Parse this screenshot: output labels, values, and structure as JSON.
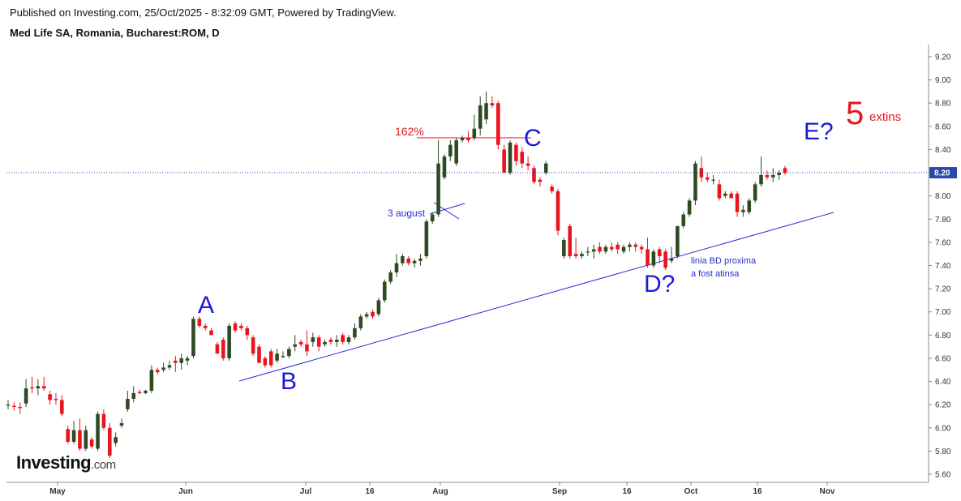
{
  "header": {
    "published": "Published on Investing.com, 25/Oct/2025 - 8:32:09 GMT, Powered by TradingView.",
    "symbol": "Med Life SA, Romania, Bucharest:ROM, D"
  },
  "logo": {
    "brand": "Investing",
    "domain": ".com"
  },
  "colors": {
    "up": "#2e4a22",
    "down": "#e8141e",
    "wave": "#1a1ad6",
    "priceline": "#2a4aa8",
    "label_bg": "#2a4aa8"
  },
  "chart_data": {
    "type": "candlestick",
    "title": "Med Life SA, Romania, Bucharest:ROM, D",
    "ylim": [
      5.55,
      9.3
    ],
    "y_ticks": [
      "9.20",
      "9.00",
      "8.80",
      "8.60",
      "8.40",
      "8.20",
      "8.00",
      "7.80",
      "7.60",
      "7.40",
      "7.20",
      "7.00",
      "6.80",
      "6.60",
      "6.40",
      "6.20",
      "6.00",
      "5.80",
      "5.60"
    ],
    "x_ticks": [
      "May",
      "Jun",
      "Jul",
      "16",
      "Aug",
      "Sep",
      "16",
      "Oct",
      "16",
      "Nov"
    ],
    "last_price_label": "8.20",
    "last_price": 8.2,
    "candles": [
      {
        "o": 6.2,
        "h": 6.24,
        "l": 6.16,
        "c": 6.2
      },
      {
        "o": 6.19,
        "h": 6.22,
        "l": 6.15,
        "c": 6.18
      },
      {
        "o": 6.18,
        "h": 6.22,
        "l": 6.12,
        "c": 6.17
      },
      {
        "o": 6.21,
        "h": 6.42,
        "l": 6.18,
        "c": 6.34
      },
      {
        "o": 6.35,
        "h": 6.44,
        "l": 6.3,
        "c": 6.34
      },
      {
        "o": 6.34,
        "h": 6.42,
        "l": 6.28,
        "c": 6.36
      },
      {
        "o": 6.36,
        "h": 6.44,
        "l": 6.32,
        "c": 6.34
      },
      {
        "o": 6.29,
        "h": 6.32,
        "l": 6.2,
        "c": 6.24
      },
      {
        "o": 6.25,
        "h": 6.3,
        "l": 6.2,
        "c": 6.24
      },
      {
        "o": 6.24,
        "h": 6.28,
        "l": 6.1,
        "c": 6.12
      },
      {
        "o": 5.99,
        "h": 6.02,
        "l": 5.86,
        "c": 5.88
      },
      {
        "o": 5.88,
        "h": 6.06,
        "l": 5.86,
        "c": 5.98
      },
      {
        "o": 5.98,
        "h": 6.08,
        "l": 5.8,
        "c": 5.82
      },
      {
        "o": 5.82,
        "h": 6.02,
        "l": 5.8,
        "c": 5.98
      },
      {
        "o": 5.9,
        "h": 5.92,
        "l": 5.82,
        "c": 5.84
      },
      {
        "o": 5.82,
        "h": 6.14,
        "l": 5.8,
        "c": 6.12
      },
      {
        "o": 6.12,
        "h": 6.16,
        "l": 5.98,
        "c": 6.0
      },
      {
        "o": 6.0,
        "h": 6.04,
        "l": 5.74,
        "c": 5.76
      },
      {
        "o": 5.87,
        "h": 5.96,
        "l": 5.84,
        "c": 5.92
      },
      {
        "o": 6.02,
        "h": 6.08,
        "l": 6.0,
        "c": 6.04
      },
      {
        "o": 6.16,
        "h": 6.32,
        "l": 6.14,
        "c": 6.25
      },
      {
        "o": 6.25,
        "h": 6.36,
        "l": 6.22,
        "c": 6.3
      },
      {
        "o": 6.31,
        "h": 6.33,
        "l": 6.29,
        "c": 6.3
      },
      {
        "o": 6.3,
        "h": 6.33,
        "l": 6.29,
        "c": 6.32
      },
      {
        "o": 6.32,
        "h": 6.54,
        "l": 6.3,
        "c": 6.5
      },
      {
        "o": 6.5,
        "h": 6.52,
        "l": 6.46,
        "c": 6.48
      },
      {
        "o": 6.5,
        "h": 6.56,
        "l": 6.48,
        "c": 6.52
      },
      {
        "o": 6.52,
        "h": 6.58,
        "l": 6.5,
        "c": 6.54
      },
      {
        "o": 6.58,
        "h": 6.62,
        "l": 6.48,
        "c": 6.56
      },
      {
        "o": 6.56,
        "h": 6.64,
        "l": 6.5,
        "c": 6.6
      },
      {
        "o": 6.58,
        "h": 6.62,
        "l": 6.54,
        "c": 6.6
      },
      {
        "o": 6.62,
        "h": 6.96,
        "l": 6.6,
        "c": 6.94
      },
      {
        "o": 6.94,
        "h": 6.96,
        "l": 6.86,
        "c": 6.88
      },
      {
        "o": 6.88,
        "h": 6.9,
        "l": 6.84,
        "c": 6.86
      },
      {
        "o": 6.84,
        "h": 6.86,
        "l": 6.8,
        "c": 6.8
      },
      {
        "o": 6.72,
        "h": 6.74,
        "l": 6.64,
        "c": 6.64
      },
      {
        "o": 6.76,
        "h": 6.78,
        "l": 6.58,
        "c": 6.6
      },
      {
        "o": 6.6,
        "h": 6.9,
        "l": 6.58,
        "c": 6.88
      },
      {
        "o": 6.9,
        "h": 6.92,
        "l": 6.82,
        "c": 6.84
      },
      {
        "o": 6.88,
        "h": 6.9,
        "l": 6.84,
        "c": 6.86
      },
      {
        "o": 6.86,
        "h": 6.88,
        "l": 6.76,
        "c": 6.8
      },
      {
        "o": 6.78,
        "h": 6.8,
        "l": 6.62,
        "c": 6.64
      },
      {
        "o": 6.7,
        "h": 6.72,
        "l": 6.56,
        "c": 6.56
      },
      {
        "o": 6.6,
        "h": 6.62,
        "l": 6.52,
        "c": 6.54
      },
      {
        "o": 6.66,
        "h": 6.68,
        "l": 6.52,
        "c": 6.54
      },
      {
        "o": 6.58,
        "h": 6.68,
        "l": 6.56,
        "c": 6.64
      },
      {
        "o": 6.62,
        "h": 6.66,
        "l": 6.6,
        "c": 6.62
      },
      {
        "o": 6.62,
        "h": 6.7,
        "l": 6.6,
        "c": 6.68
      },
      {
        "o": 6.7,
        "h": 6.8,
        "l": 6.66,
        "c": 6.72
      },
      {
        "o": 6.74,
        "h": 6.76,
        "l": 6.7,
        "c": 6.72
      },
      {
        "o": 6.72,
        "h": 6.84,
        "l": 6.62,
        "c": 6.66
      },
      {
        "o": 6.74,
        "h": 6.82,
        "l": 6.7,
        "c": 6.78
      },
      {
        "o": 6.78,
        "h": 6.8,
        "l": 6.66,
        "c": 6.7
      },
      {
        "o": 6.72,
        "h": 6.76,
        "l": 6.7,
        "c": 6.74
      },
      {
        "o": 6.76,
        "h": 6.78,
        "l": 6.72,
        "c": 6.74
      },
      {
        "o": 6.74,
        "h": 6.8,
        "l": 6.7,
        "c": 6.76
      },
      {
        "o": 6.8,
        "h": 6.82,
        "l": 6.72,
        "c": 6.74
      },
      {
        "o": 6.74,
        "h": 6.8,
        "l": 6.72,
        "c": 6.78
      },
      {
        "o": 6.78,
        "h": 6.9,
        "l": 6.76,
        "c": 6.86
      },
      {
        "o": 6.86,
        "h": 6.98,
        "l": 6.84,
        "c": 6.96
      },
      {
        "o": 6.96,
        "h": 7.0,
        "l": 6.94,
        "c": 6.98
      },
      {
        "o": 7.0,
        "h": 7.02,
        "l": 6.94,
        "c": 6.96
      },
      {
        "o": 6.98,
        "h": 7.12,
        "l": 6.96,
        "c": 7.1
      },
      {
        "o": 7.1,
        "h": 7.28,
        "l": 7.08,
        "c": 7.26
      },
      {
        "o": 7.26,
        "h": 7.36,
        "l": 7.24,
        "c": 7.34
      },
      {
        "o": 7.34,
        "h": 7.5,
        "l": 7.3,
        "c": 7.42
      },
      {
        "o": 7.42,
        "h": 7.5,
        "l": 7.4,
        "c": 7.48
      },
      {
        "o": 7.46,
        "h": 7.48,
        "l": 7.4,
        "c": 7.42
      },
      {
        "o": 7.42,
        "h": 7.46,
        "l": 7.38,
        "c": 7.44
      },
      {
        "o": 7.44,
        "h": 7.5,
        "l": 7.4,
        "c": 7.46
      },
      {
        "o": 7.48,
        "h": 7.8,
        "l": 7.46,
        "c": 7.78
      },
      {
        "o": 7.78,
        "h": 7.86,
        "l": 7.76,
        "c": 7.84
      },
      {
        "o": 7.84,
        "h": 8.48,
        "l": 7.82,
        "c": 8.28
      },
      {
        "o": 8.16,
        "h": 8.36,
        "l": 8.14,
        "c": 8.34
      },
      {
        "o": 8.34,
        "h": 8.48,
        "l": 8.3,
        "c": 8.44
      },
      {
        "o": 8.28,
        "h": 8.5,
        "l": 8.26,
        "c": 8.48
      },
      {
        "o": 8.48,
        "h": 8.52,
        "l": 8.46,
        "c": 8.5
      },
      {
        "o": 8.5,
        "h": 8.56,
        "l": 8.46,
        "c": 8.48
      },
      {
        "o": 8.5,
        "h": 8.7,
        "l": 8.48,
        "c": 8.58
      },
      {
        "o": 8.58,
        "h": 8.86,
        "l": 8.52,
        "c": 8.78
      },
      {
        "o": 8.66,
        "h": 8.9,
        "l": 8.62,
        "c": 8.8
      },
      {
        "o": 8.8,
        "h": 8.86,
        "l": 8.76,
        "c": 8.78
      },
      {
        "o": 8.8,
        "h": 8.82,
        "l": 8.4,
        "c": 8.44
      },
      {
        "o": 8.4,
        "h": 8.44,
        "l": 8.2,
        "c": 8.2
      },
      {
        "o": 8.2,
        "h": 8.48,
        "l": 8.18,
        "c": 8.46
      },
      {
        "o": 8.44,
        "h": 8.46,
        "l": 8.26,
        "c": 8.3
      },
      {
        "o": 8.38,
        "h": 8.42,
        "l": 8.24,
        "c": 8.28
      },
      {
        "o": 8.28,
        "h": 8.34,
        "l": 8.22,
        "c": 8.26
      },
      {
        "o": 8.24,
        "h": 8.26,
        "l": 8.1,
        "c": 8.12
      },
      {
        "o": 8.14,
        "h": 8.16,
        "l": 8.08,
        "c": 8.12
      },
      {
        "o": 8.2,
        "h": 8.3,
        "l": 8.18,
        "c": 8.28
      },
      {
        "o": 8.08,
        "h": 8.1,
        "l": 8.02,
        "c": 8.04
      },
      {
        "o": 8.04,
        "h": 8.06,
        "l": 7.66,
        "c": 7.7
      },
      {
        "o": 7.48,
        "h": 7.64,
        "l": 7.46,
        "c": 7.62
      },
      {
        "o": 7.74,
        "h": 7.76,
        "l": 7.46,
        "c": 7.48
      },
      {
        "o": 7.5,
        "h": 7.64,
        "l": 7.46,
        "c": 7.48
      },
      {
        "o": 7.48,
        "h": 7.52,
        "l": 7.46,
        "c": 7.5
      },
      {
        "o": 7.52,
        "h": 7.56,
        "l": 7.48,
        "c": 7.52
      },
      {
        "o": 7.52,
        "h": 7.58,
        "l": 7.46,
        "c": 7.54
      },
      {
        "o": 7.56,
        "h": 7.6,
        "l": 7.5,
        "c": 7.52
      },
      {
        "o": 7.52,
        "h": 7.58,
        "l": 7.5,
        "c": 7.56
      },
      {
        "o": 7.56,
        "h": 7.6,
        "l": 7.52,
        "c": 7.54
      },
      {
        "o": 7.58,
        "h": 7.6,
        "l": 7.5,
        "c": 7.54
      },
      {
        "o": 7.52,
        "h": 7.58,
        "l": 7.5,
        "c": 7.56
      },
      {
        "o": 7.56,
        "h": 7.6,
        "l": 7.52,
        "c": 7.58
      },
      {
        "o": 7.58,
        "h": 7.6,
        "l": 7.52,
        "c": 7.56
      },
      {
        "o": 7.56,
        "h": 7.58,
        "l": 7.5,
        "c": 7.54
      },
      {
        "o": 7.54,
        "h": 7.64,
        "l": 7.38,
        "c": 7.4
      },
      {
        "o": 7.4,
        "h": 7.54,
        "l": 7.38,
        "c": 7.52
      },
      {
        "o": 7.54,
        "h": 7.56,
        "l": 7.42,
        "c": 7.48
      },
      {
        "o": 7.52,
        "h": 7.54,
        "l": 7.36,
        "c": 7.38
      },
      {
        "o": 7.44,
        "h": 7.56,
        "l": 7.42,
        "c": 7.46
      },
      {
        "o": 7.48,
        "h": 7.74,
        "l": 7.46,
        "c": 7.74
      },
      {
        "o": 7.74,
        "h": 7.86,
        "l": 7.72,
        "c": 7.84
      },
      {
        "o": 7.84,
        "h": 7.98,
        "l": 7.82,
        "c": 7.96
      },
      {
        "o": 7.96,
        "h": 8.3,
        "l": 7.92,
        "c": 8.28
      },
      {
        "o": 8.24,
        "h": 8.34,
        "l": 8.12,
        "c": 8.16
      },
      {
        "o": 8.16,
        "h": 8.2,
        "l": 8.12,
        "c": 8.14
      },
      {
        "o": 8.14,
        "h": 8.18,
        "l": 8.1,
        "c": 8.14
      },
      {
        "o": 8.1,
        "h": 8.14,
        "l": 7.96,
        "c": 7.98
      },
      {
        "o": 8.0,
        "h": 8.04,
        "l": 7.98,
        "c": 8.02
      },
      {
        "o": 8.02,
        "h": 8.04,
        "l": 7.98,
        "c": 7.98
      },
      {
        "o": 8.02,
        "h": 8.04,
        "l": 7.82,
        "c": 7.86
      },
      {
        "o": 7.86,
        "h": 7.92,
        "l": 7.82,
        "c": 7.88
      },
      {
        "o": 7.86,
        "h": 7.98,
        "l": 7.84,
        "c": 7.96
      },
      {
        "o": 7.96,
        "h": 8.12,
        "l": 7.94,
        "c": 8.1
      },
      {
        "o": 8.1,
        "h": 8.34,
        "l": 8.08,
        "c": 8.18
      },
      {
        "o": 8.18,
        "h": 8.22,
        "l": 8.14,
        "c": 8.16
      },
      {
        "o": 8.16,
        "h": 8.24,
        "l": 8.12,
        "c": 8.18
      },
      {
        "o": 8.18,
        "h": 8.22,
        "l": 8.14,
        "c": 8.2
      },
      {
        "o": 8.24,
        "h": 8.26,
        "l": 8.18,
        "c": 8.2
      }
    ],
    "annotations": {
      "A": "A",
      "B": "B",
      "C": "C",
      "D": "D?",
      "E": "E?",
      "five": "5",
      "extins": "extins",
      "fib": "162%",
      "aug3": "3 august",
      "bd_line_1": "linia BD proxima",
      "bd_line_2": "a fost atinsa"
    }
  }
}
